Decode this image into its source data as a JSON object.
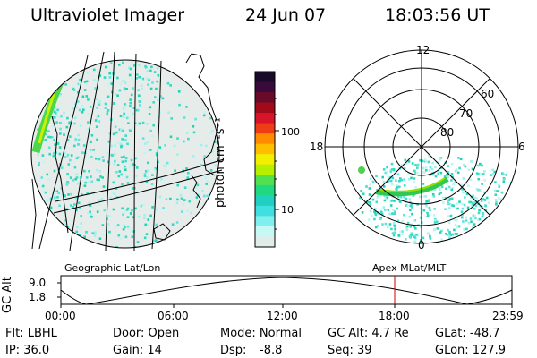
{
  "header": {
    "instrument": "Ultraviolet Imager",
    "date": "24 Jun 07",
    "time": "18:03:56 UT"
  },
  "panels": {
    "left_label": "Geographic Lat/Lon",
    "right_label": "Apex MLat/MLT"
  },
  "colorbar": {
    "unit_label": "photon cm⁻²s⁻¹",
    "tick_labels": [
      "100",
      "10"
    ],
    "colors_top_to_bottom": [
      "#1a0a2a",
      "#3a0a3a",
      "#6a0a2a",
      "#a00a1a",
      "#d8142a",
      "#f03c14",
      "#ff8c00",
      "#ffbe00",
      "#f0f000",
      "#b4f000",
      "#50e050",
      "#20d880",
      "#20d0c0",
      "#40e0e0",
      "#80f0ee",
      "#c8f8f4",
      "#e0ece8"
    ]
  },
  "polar": {
    "mlt_labels": [
      "12",
      "18",
      "6",
      "0"
    ],
    "lat_labels": [
      "60",
      "70",
      "80"
    ]
  },
  "altitude_plot": {
    "ylabel": "GC Alt",
    "y_ticks": [
      "9.0",
      "1.8"
    ],
    "x_ticks": [
      "00:00",
      "06:00",
      "12:00",
      "18:00",
      "23:59"
    ],
    "marker_color": "#cc0000"
  },
  "footer": {
    "flt": "Flt: LBHL",
    "ip": "IP: 36.0",
    "door": "Door: Open",
    "gain": "Gain: 14",
    "mode": "Mode: Normal",
    "dsp": "Dsp:",
    "dsp_value": "-8.8",
    "gc_alt": "GC Alt: 4.7 Re",
    "seq": "Seq: 39",
    "glat": "GLat: -48.7",
    "glon": "GLon: 127.9"
  }
}
